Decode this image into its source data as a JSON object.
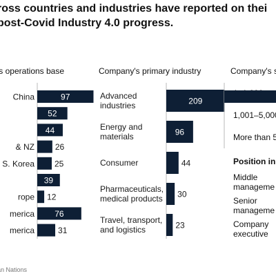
{
  "title": {
    "line1": "ross countries and industries have reported on thei",
    "line2": " post-Covid Industry 4.0 progress."
  },
  "source": "an Nations",
  "chart_data": [
    {
      "type": "bar",
      "orientation": "horizontal",
      "header": "'s operations base",
      "categories": [
        "China",
        "",
        "",
        "& NZ",
        "S. Korea",
        "",
        "rope",
        "merica",
        "merica"
      ],
      "values": [
        97,
        52,
        44,
        26,
        25,
        39,
        12,
        76,
        31
      ],
      "bar_color": "#0e1f35"
    },
    {
      "type": "bar",
      "orientation": "horizontal",
      "header": "Company's primary industry",
      "categories": [
        "Advanced industries",
        "Energy and materials",
        "Consumer",
        "Pharmaceuticals, medical products",
        "Travel, transport, and logistics"
      ],
      "category_lines": [
        [
          "Advanced",
          "industries"
        ],
        [
          "Energy and",
          "materials"
        ],
        [
          "Consumer"
        ],
        [
          "Pharmaceuticals,",
          "medical products"
        ],
        [
          "Travel, transport,",
          "and logistics"
        ]
      ],
      "values": [
        209,
        96,
        44,
        30,
        23
      ],
      "bar_color": "#0e1f35"
    },
    {
      "type": "bar",
      "orientation": "horizontal",
      "header": "Company's s",
      "categories": [
        "1–1,000",
        "1,001–5,000",
        "More than 5"
      ],
      "subheader": "Position in c",
      "categories2": [
        "Middle manageme",
        "Senior manageme",
        "Company executive"
      ],
      "category2_lines": [
        [
          "Middle",
          "manageme"
        ],
        [
          "Senior",
          "manageme"
        ],
        [
          "Company",
          "executive"
        ]
      ]
    }
  ]
}
